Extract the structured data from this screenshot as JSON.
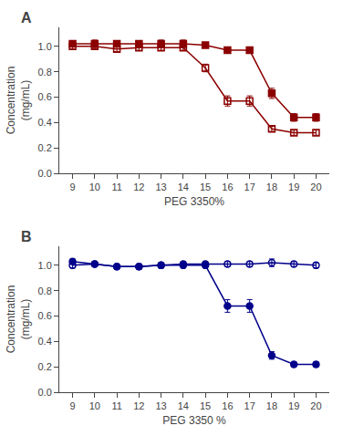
{
  "chart_data": [
    {
      "type": "line",
      "annotations": [
        "A"
      ],
      "xlabel": "PEG 3350%",
      "ylabel": "Concentration\n(mg/mL)",
      "x": [
        9,
        10,
        11,
        12,
        13,
        14,
        15,
        16,
        17,
        18,
        19,
        20
      ],
      "series": [
        {
          "color": "#8B0000",
          "marker": "square-open",
          "values": [
            1.0,
            1.0,
            0.98,
            0.99,
            0.99,
            0.99,
            0.83,
            0.57,
            0.57,
            0.35,
            0.32,
            0.32
          ],
          "yerr": [
            0.02,
            0.02,
            0.02,
            0.02,
            0.02,
            0.02,
            0.03,
            0.04,
            0.04,
            0.02,
            0.02,
            0.02
          ]
        },
        {
          "color": "#8B0000",
          "marker": "square",
          "values": [
            1.02,
            1.02,
            1.02,
            1.02,
            1.02,
            1.02,
            1.01,
            0.97,
            0.97,
            0.63,
            0.44,
            0.44
          ],
          "yerr": [
            0.02,
            0.03,
            0.02,
            0.02,
            0.03,
            0.03,
            0.02,
            0.02,
            0.02,
            0.04,
            0.03,
            0.03
          ]
        }
      ],
      "xlim": [
        8.4,
        20.6
      ],
      "xticks": [
        9,
        10,
        11,
        12,
        13,
        14,
        15,
        16,
        17,
        18,
        19,
        20
      ],
      "ylim": [
        0.0,
        1.15
      ],
      "yticks": [
        {
          "value": 0.0,
          "label": "0.0"
        },
        0.2,
        0.4,
        0.6,
        0.8,
        {
          "value": 1.0,
          "label": "1.0"
        }
      ],
      "grid": false
    },
    {
      "type": "line",
      "annotations": [
        "B"
      ],
      "xlabel": "PEG 3350 %",
      "ylabel": "Concentration\n(mg/mL)",
      "x": [
        9,
        10,
        11,
        12,
        13,
        14,
        15,
        16,
        17,
        18,
        19,
        20
      ],
      "series": [
        {
          "color": "#00008B",
          "marker": "circle-open",
          "values": [
            1.0,
            1.01,
            0.99,
            0.99,
            1.0,
            1.01,
            1.01,
            1.01,
            1.01,
            1.02,
            1.01,
            1.0
          ],
          "yerr": [
            0.02,
            0.02,
            0.02,
            0.02,
            0.02,
            0.02,
            0.02,
            0.02,
            0.02,
            0.03,
            0.02,
            0.02
          ]
        },
        {
          "color": "#00008B",
          "marker": "circle",
          "values": [
            1.03,
            1.01,
            0.99,
            0.99,
            1.0,
            1.0,
            1.0,
            0.68,
            0.68,
            0.29,
            0.22,
            0.22
          ],
          "yerr": [
            0.02,
            0.02,
            0.02,
            0.02,
            0.02,
            0.02,
            0.02,
            0.05,
            0.05,
            0.03,
            0.02,
            0.02
          ]
        }
      ],
      "xlim": [
        8.4,
        20.6
      ],
      "xticks": [
        9,
        10,
        11,
        12,
        13,
        14,
        15,
        16,
        17,
        18,
        19,
        20
      ],
      "ylim": [
        0.0,
        1.15
      ],
      "yticks": [
        {
          "value": 0.0,
          "label": "0.0"
        },
        0.2,
        0.4,
        0.6,
        0.8,
        {
          "value": 1.0,
          "label": "1.0"
        }
      ],
      "grid": false
    }
  ]
}
